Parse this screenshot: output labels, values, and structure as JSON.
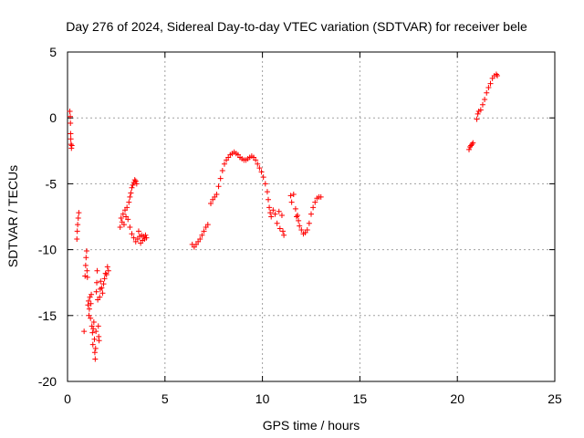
{
  "chart_data": {
    "type": "scatter",
    "title": "Day 276 of 2024, Sidereal Day-to-day VTEC variation (SDTVAR) for receiver bele",
    "xlabel": "GPS time / hours",
    "ylabel": "SDTVAR / TECUs",
    "xlim": [
      0,
      25
    ],
    "ylim": [
      -20,
      5
    ],
    "xticks": [
      0,
      5,
      10,
      15,
      20,
      25
    ],
    "yticks": [
      -20,
      -15,
      -10,
      -5,
      0,
      5
    ],
    "xtick_labels": [
      "0",
      "5",
      "10",
      "15",
      "20",
      "25"
    ],
    "ytick_labels": [
      "-20",
      "-15",
      "-10",
      "-5",
      "0",
      "5"
    ],
    "grid": true,
    "marker": "+",
    "color": "#ff0000",
    "series": [
      {
        "name": "SDTVAR",
        "points": [
          [
            0.12,
            0.5
          ],
          [
            0.14,
            0.1
          ],
          [
            0.15,
            -0.4
          ],
          [
            0.16,
            -1.2
          ],
          [
            0.17,
            -1.6
          ],
          [
            0.18,
            -2.0
          ],
          [
            0.2,
            -2.3
          ],
          [
            0.22,
            -2.1
          ],
          [
            0.48,
            -9.2
          ],
          [
            0.5,
            -8.6
          ],
          [
            0.52,
            -8.1
          ],
          [
            0.55,
            -7.6
          ],
          [
            0.58,
            -7.2
          ],
          [
            0.85,
            -16.2
          ],
          [
            0.9,
            -12.0
          ],
          [
            0.93,
            -11.2
          ],
          [
            0.95,
            -10.6
          ],
          [
            0.98,
            -10.1
          ],
          [
            1.0,
            -11.6
          ],
          [
            1.02,
            -12.1
          ],
          [
            1.05,
            -14.2
          ],
          [
            1.08,
            -13.9
          ],
          [
            1.1,
            -15.0
          ],
          [
            1.12,
            -14.5
          ],
          [
            1.15,
            -13.6
          ],
          [
            1.18,
            -15.2
          ],
          [
            1.2,
            -14.1
          ],
          [
            1.22,
            -13.4
          ],
          [
            1.25,
            -15.8
          ],
          [
            1.28,
            -16.3
          ],
          [
            1.3,
            -17.2
          ],
          [
            1.32,
            -16.0
          ],
          [
            1.35,
            -15.5
          ],
          [
            1.38,
            -16.8
          ],
          [
            1.4,
            -17.8
          ],
          [
            1.42,
            -18.3
          ],
          [
            1.44,
            -17.5
          ],
          [
            1.46,
            -16.2
          ],
          [
            1.48,
            -13.2
          ],
          [
            1.5,
            -12.5
          ],
          [
            1.52,
            -11.6
          ],
          [
            1.55,
            -13.8
          ],
          [
            1.58,
            -15.8
          ],
          [
            1.6,
            -16.6
          ],
          [
            1.62,
            -16.9
          ],
          [
            1.65,
            -13.6
          ],
          [
            1.68,
            -13.0
          ],
          [
            1.7,
            -12.4
          ],
          [
            1.75,
            -12.9
          ],
          [
            1.8,
            -13.3
          ],
          [
            1.85,
            -12.6
          ],
          [
            1.9,
            -12.2
          ],
          [
            1.95,
            -11.8
          ],
          [
            2.0,
            -11.9
          ],
          [
            2.05,
            -11.3
          ],
          [
            2.1,
            -11.6
          ],
          [
            2.7,
            -8.3
          ],
          [
            2.75,
            -7.6
          ],
          [
            2.8,
            -7.9
          ],
          [
            2.85,
            -7.3
          ],
          [
            2.9,
            -8.1
          ],
          [
            2.95,
            -7.0
          ],
          [
            3.0,
            -7.5
          ],
          [
            3.05,
            -6.8
          ],
          [
            3.1,
            -7.7
          ],
          [
            3.15,
            -6.4
          ],
          [
            3.2,
            -6.0
          ],
          [
            3.25,
            -5.7
          ],
          [
            3.3,
            -5.3
          ],
          [
            3.35,
            -5.1
          ],
          [
            3.4,
            -4.9
          ],
          [
            3.45,
            -4.7
          ],
          [
            3.5,
            -4.8
          ],
          [
            3.55,
            -5.0
          ],
          [
            3.2,
            -8.3
          ],
          [
            3.3,
            -8.8
          ],
          [
            3.4,
            -9.1
          ],
          [
            3.5,
            -9.4
          ],
          [
            3.6,
            -9.2
          ],
          [
            3.65,
            -8.6
          ],
          [
            3.7,
            -9.0
          ],
          [
            3.75,
            -9.5
          ],
          [
            3.8,
            -8.9
          ],
          [
            3.85,
            -9.3
          ],
          [
            3.9,
            -9.0
          ],
          [
            3.95,
            -9.2
          ],
          [
            4.0,
            -8.9
          ],
          [
            4.05,
            -9.1
          ],
          [
            6.4,
            -9.6
          ],
          [
            6.5,
            -9.8
          ],
          [
            6.6,
            -9.6
          ],
          [
            6.7,
            -9.4
          ],
          [
            6.8,
            -9.2
          ],
          [
            6.9,
            -8.9
          ],
          [
            7.0,
            -8.6
          ],
          [
            7.1,
            -8.3
          ],
          [
            7.2,
            -8.1
          ],
          [
            7.35,
            -6.5
          ],
          [
            7.45,
            -6.2
          ],
          [
            7.55,
            -6.0
          ],
          [
            7.65,
            -5.8
          ],
          [
            7.75,
            -5.2
          ],
          [
            7.85,
            -4.6
          ],
          [
            7.95,
            -4.0
          ],
          [
            8.05,
            -3.5
          ],
          [
            8.15,
            -3.2
          ],
          [
            8.25,
            -3.0
          ],
          [
            8.35,
            -2.8
          ],
          [
            8.45,
            -2.7
          ],
          [
            8.55,
            -2.6
          ],
          [
            8.65,
            -2.7
          ],
          [
            8.75,
            -2.8
          ],
          [
            8.85,
            -3.0
          ],
          [
            8.95,
            -3.1
          ],
          [
            9.05,
            -3.2
          ],
          [
            9.15,
            -3.2
          ],
          [
            9.25,
            -3.1
          ],
          [
            9.35,
            -3.0
          ],
          [
            9.45,
            -2.9
          ],
          [
            9.55,
            -3.0
          ],
          [
            9.65,
            -3.2
          ],
          [
            9.75,
            -3.5
          ],
          [
            9.85,
            -3.8
          ],
          [
            9.95,
            -4.1
          ],
          [
            10.05,
            -4.5
          ],
          [
            10.15,
            -5.0
          ],
          [
            10.25,
            -5.6
          ],
          [
            10.3,
            -6.2
          ],
          [
            10.35,
            -6.8
          ],
          [
            10.4,
            -7.2
          ],
          [
            10.45,
            -7.5
          ],
          [
            10.55,
            -7.0
          ],
          [
            10.65,
            -7.3
          ],
          [
            10.75,
            -8.0
          ],
          [
            10.85,
            -7.1
          ],
          [
            10.9,
            -8.4
          ],
          [
            11.0,
            -7.4
          ],
          [
            11.05,
            -8.6
          ],
          [
            11.1,
            -8.9
          ],
          [
            11.45,
            -5.9
          ],
          [
            11.5,
            -6.4
          ],
          [
            11.6,
            -5.8
          ],
          [
            11.7,
            -6.9
          ],
          [
            11.75,
            -7.5
          ],
          [
            11.8,
            -7.4
          ],
          [
            11.85,
            -7.8
          ],
          [
            11.9,
            -8.2
          ],
          [
            12.0,
            -8.5
          ],
          [
            12.1,
            -8.8
          ],
          [
            12.2,
            -8.7
          ],
          [
            12.3,
            -8.5
          ],
          [
            12.4,
            -8.0
          ],
          [
            12.5,
            -7.3
          ],
          [
            12.6,
            -6.8
          ],
          [
            12.7,
            -6.4
          ],
          [
            12.8,
            -6.1
          ],
          [
            12.9,
            -6.0
          ],
          [
            13.0,
            -6.0
          ],
          [
            20.6,
            -2.4
          ],
          [
            20.65,
            -2.2
          ],
          [
            20.7,
            -2.1
          ],
          [
            20.75,
            -2.0
          ],
          [
            20.8,
            -1.9
          ],
          [
            21.0,
            -0.1
          ],
          [
            21.05,
            0.3
          ],
          [
            21.1,
            0.5
          ],
          [
            21.2,
            0.6
          ],
          [
            21.3,
            1.0
          ],
          [
            21.4,
            1.4
          ],
          [
            21.5,
            1.9
          ],
          [
            21.6,
            2.3
          ],
          [
            21.7,
            2.6
          ],
          [
            21.8,
            3.0
          ],
          [
            21.9,
            3.2
          ],
          [
            22.0,
            3.3
          ],
          [
            22.05,
            3.2
          ]
        ]
      }
    ]
  }
}
